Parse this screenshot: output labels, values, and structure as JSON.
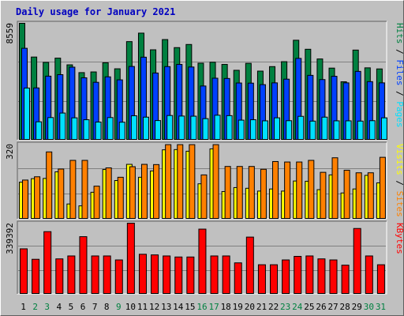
{
  "title": "Daily usage for January 2021",
  "colors": {
    "background": "#c0c0c0",
    "title": "#0000c0",
    "hits": "#008040",
    "files": "#0040ff",
    "pages": "#00e0ff",
    "visits": "#ffff00",
    "sites": "#ff8000",
    "kbytes": "#ff0000",
    "weekend_day_label": "#008040",
    "weekday_label": "#000000"
  },
  "chart_data": [
    {
      "type": "bar",
      "name": "hits-files-pages",
      "legend": [
        {
          "label": "Pages",
          "color": "#00e0ff"
        },
        {
          "label": "Files",
          "color": "#0040ff"
        },
        {
          "label": "Hits",
          "color": "#008040"
        }
      ],
      "y_max_label": "8559",
      "ylim": [
        0,
        8559
      ],
      "categories": [
        "1",
        "2",
        "3",
        "4",
        "5",
        "6",
        "7",
        "8",
        "9",
        "10",
        "11",
        "12",
        "13",
        "14",
        "15",
        "16",
        "17",
        "18",
        "19",
        "20",
        "21",
        "22",
        "23",
        "24",
        "25",
        "26",
        "27",
        "28",
        "29",
        "30",
        "31"
      ],
      "series": [
        {
          "name": "Hits",
          "values": [
            8559,
            6090,
            5700,
            6010,
            5520,
            4950,
            5000,
            5670,
            5230,
            7220,
            7840,
            6620,
            7370,
            6780,
            7010,
            5640,
            5710,
            5550,
            5120,
            5630,
            5060,
            5390,
            5750,
            7320,
            6660,
            5950,
            5280,
            4280,
            6600,
            5300,
            5220
          ]
        },
        {
          "name": "Files",
          "values": [
            6730,
            3830,
            4690,
            4800,
            5350,
            4570,
            4240,
            4640,
            4420,
            5400,
            6080,
            4920,
            5390,
            5550,
            5360,
            3970,
            4540,
            4520,
            4190,
            4180,
            4070,
            4200,
            4470,
            5990,
            4750,
            4440,
            4680,
            4200,
            5040,
            4290,
            4200
          ]
        },
        {
          "name": "Pages",
          "values": [
            3820,
            1350,
            1660,
            1990,
            1640,
            1500,
            1330,
            1660,
            1320,
            1790,
            1690,
            1440,
            1810,
            1770,
            1760,
            1580,
            1830,
            1800,
            1470,
            1500,
            1420,
            1640,
            1430,
            1750,
            1400,
            1690,
            1420,
            1420,
            1400,
            1430,
            1640
          ]
        }
      ]
    },
    {
      "type": "bar",
      "name": "sites-visits",
      "legend": [
        {
          "label": "Sites",
          "color": "#ff8000"
        },
        {
          "label": "Visits",
          "color": "#ffff00"
        }
      ],
      "y_max_label": "320",
      "ylim": [
        0,
        320
      ],
      "categories": [
        "1",
        "2",
        "3",
        "4",
        "5",
        "6",
        "7",
        "8",
        "9",
        "10",
        "11",
        "12",
        "13",
        "14",
        "15",
        "16",
        "17",
        "18",
        "19",
        "20",
        "21",
        "22",
        "23",
        "24",
        "25",
        "26",
        "27",
        "28",
        "29",
        "30",
        "31"
      ],
      "series": [
        {
          "name": "Sites",
          "values": [
            167,
            181,
            287,
            214,
            251,
            251,
            141,
            219,
            179,
            224,
            234,
            233,
            318,
            318,
            318,
            189,
            318,
            225,
            225,
            225,
            213,
            246,
            244,
            244,
            251,
            200,
            262,
            209,
            198,
            198,
            264
          ]
        },
        {
          "name": "Visits",
          "values": [
            158,
            173,
            174,
            202,
            65,
            57,
            115,
            212,
            165,
            234,
            179,
            206,
            296,
            297,
            290,
            151,
            300,
            118,
            135,
            132,
            120,
            129,
            120,
            163,
            162,
            126,
            189,
            112,
            129,
            187,
            155
          ]
        }
      ]
    },
    {
      "type": "bar",
      "name": "kbytes",
      "legend": [
        {
          "label": "KBytes",
          "color": "#ff0000"
        }
      ],
      "y_max_label": "339392",
      "ylim": [
        0,
        339392
      ],
      "categories": [
        "1",
        "2",
        "3",
        "4",
        "5",
        "6",
        "7",
        "8",
        "9",
        "10",
        "11",
        "12",
        "13",
        "14",
        "15",
        "16",
        "17",
        "18",
        "19",
        "20",
        "21",
        "22",
        "23",
        "24",
        "25",
        "26",
        "27",
        "28",
        "29",
        "30",
        "31"
      ],
      "series": [
        {
          "name": "KBytes",
          "values": [
            217000,
            167000,
            299000,
            169000,
            183000,
            275000,
            183000,
            183000,
            164000,
            339392,
            191000,
            188000,
            183000,
            178000,
            178000,
            311000,
            183000,
            183000,
            150000,
            273000,
            141000,
            141000,
            164000,
            181000,
            183000,
            169000,
            164000,
            139000,
            314000,
            183000,
            141000
          ]
        }
      ]
    }
  ],
  "x_axis": {
    "labels": [
      "1",
      "2",
      "3",
      "4",
      "5",
      "6",
      "7",
      "8",
      "9",
      "10",
      "11",
      "12",
      "13",
      "14",
      "15",
      "16",
      "17",
      "18",
      "19",
      "20",
      "21",
      "22",
      "23",
      "24",
      "25",
      "26",
      "27",
      "28",
      "29",
      "30",
      "31"
    ],
    "weekend_days": [
      "2",
      "3",
      "9",
      "16",
      "17",
      "23",
      "24",
      "30",
      "31"
    ]
  }
}
